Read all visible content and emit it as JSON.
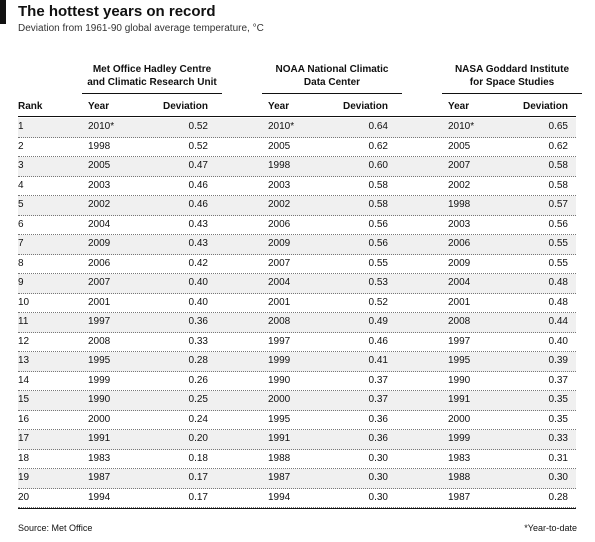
{
  "title": "The hottest years on record",
  "subtitle": "Deviation from 1961-90 global average temperature, °C",
  "source": "Source: Met Office",
  "credit": "*Year-to-date",
  "chart_data": {
    "type": "table",
    "rank_label": "Rank",
    "groups": [
      {
        "name": "Met Office Hadley Centre and Climatic Research Unit",
        "name_lines": [
          "Met Office Hadley Centre",
          "and Climatic Research Unit"
        ],
        "year_label": "Year",
        "value_label": "Deviation"
      },
      {
        "name": "NOAA National Climatic Data Center",
        "name_lines": [
          "NOAA National Climatic",
          "Data Center"
        ],
        "year_label": "Year",
        "value_label": "Deviation"
      },
      {
        "name": "NASA Goddard Institute for Space Studies",
        "name_lines": [
          "NASA Goddard Institute",
          "for Space Studies"
        ],
        "year_label": "Year",
        "value_label": "Deviation"
      }
    ],
    "rows": [
      {
        "rank": "1",
        "cells": [
          [
            "2010*",
            "0.52"
          ],
          [
            "2010*",
            "0.64"
          ],
          [
            "2010*",
            "0.65"
          ]
        ]
      },
      {
        "rank": "2",
        "cells": [
          [
            "1998",
            "0.52"
          ],
          [
            "2005",
            "0.62"
          ],
          [
            "2005",
            "0.62"
          ]
        ]
      },
      {
        "rank": "3",
        "cells": [
          [
            "2005",
            "0.47"
          ],
          [
            "1998",
            "0.60"
          ],
          [
            "2007",
            "0.58"
          ]
        ]
      },
      {
        "rank": "4",
        "cells": [
          [
            "2003",
            "0.46"
          ],
          [
            "2003",
            "0.58"
          ],
          [
            "2002",
            "0.58"
          ]
        ]
      },
      {
        "rank": "5",
        "cells": [
          [
            "2002",
            "0.46"
          ],
          [
            "2002",
            "0.58"
          ],
          [
            "1998",
            "0.57"
          ]
        ]
      },
      {
        "rank": "6",
        "cells": [
          [
            "2004",
            "0.43"
          ],
          [
            "2006",
            "0.56"
          ],
          [
            "2003",
            "0.56"
          ]
        ]
      },
      {
        "rank": "7",
        "cells": [
          [
            "2009",
            "0.43"
          ],
          [
            "2009",
            "0.56"
          ],
          [
            "2006",
            "0.55"
          ]
        ]
      },
      {
        "rank": "8",
        "cells": [
          [
            "2006",
            "0.42"
          ],
          [
            "2007",
            "0.55"
          ],
          [
            "2009",
            "0.55"
          ]
        ]
      },
      {
        "rank": "9",
        "cells": [
          [
            "2007",
            "0.40"
          ],
          [
            "2004",
            "0.53"
          ],
          [
            "2004",
            "0.48"
          ]
        ]
      },
      {
        "rank": "10",
        "cells": [
          [
            "2001",
            "0.40"
          ],
          [
            "2001",
            "0.52"
          ],
          [
            "2001",
            "0.48"
          ]
        ]
      },
      {
        "rank": "11",
        "cells": [
          [
            "1997",
            "0.36"
          ],
          [
            "2008",
            "0.49"
          ],
          [
            "2008",
            "0.44"
          ]
        ]
      },
      {
        "rank": "12",
        "cells": [
          [
            "2008",
            "0.33"
          ],
          [
            "1997",
            "0.46"
          ],
          [
            "1997",
            "0.40"
          ]
        ]
      },
      {
        "rank": "13",
        "cells": [
          [
            "1995",
            "0.28"
          ],
          [
            "1999",
            "0.41"
          ],
          [
            "1995",
            "0.39"
          ]
        ]
      },
      {
        "rank": "14",
        "cells": [
          [
            "1999",
            "0.26"
          ],
          [
            "1990",
            "0.37"
          ],
          [
            "1990",
            "0.37"
          ]
        ]
      },
      {
        "rank": "15",
        "cells": [
          [
            "1990",
            "0.25"
          ],
          [
            "2000",
            "0.37"
          ],
          [
            "1991",
            "0.35"
          ]
        ]
      },
      {
        "rank": "16",
        "cells": [
          [
            "2000",
            "0.24"
          ],
          [
            "1995",
            "0.36"
          ],
          [
            "2000",
            "0.35"
          ]
        ]
      },
      {
        "rank": "17",
        "cells": [
          [
            "1991",
            "0.20"
          ],
          [
            "1991",
            "0.36"
          ],
          [
            "1999",
            "0.33"
          ]
        ]
      },
      {
        "rank": "18",
        "cells": [
          [
            "1983",
            "0.18"
          ],
          [
            "1988",
            "0.30"
          ],
          [
            "1983",
            "0.31"
          ]
        ]
      },
      {
        "rank": "19",
        "cells": [
          [
            "1987",
            "0.17"
          ],
          [
            "1987",
            "0.30"
          ],
          [
            "1988",
            "0.30"
          ]
        ]
      },
      {
        "rank": "20",
        "cells": [
          [
            "1994",
            "0.17"
          ],
          [
            "1994",
            "0.30"
          ],
          [
            "1987",
            "0.28"
          ]
        ]
      }
    ]
  }
}
